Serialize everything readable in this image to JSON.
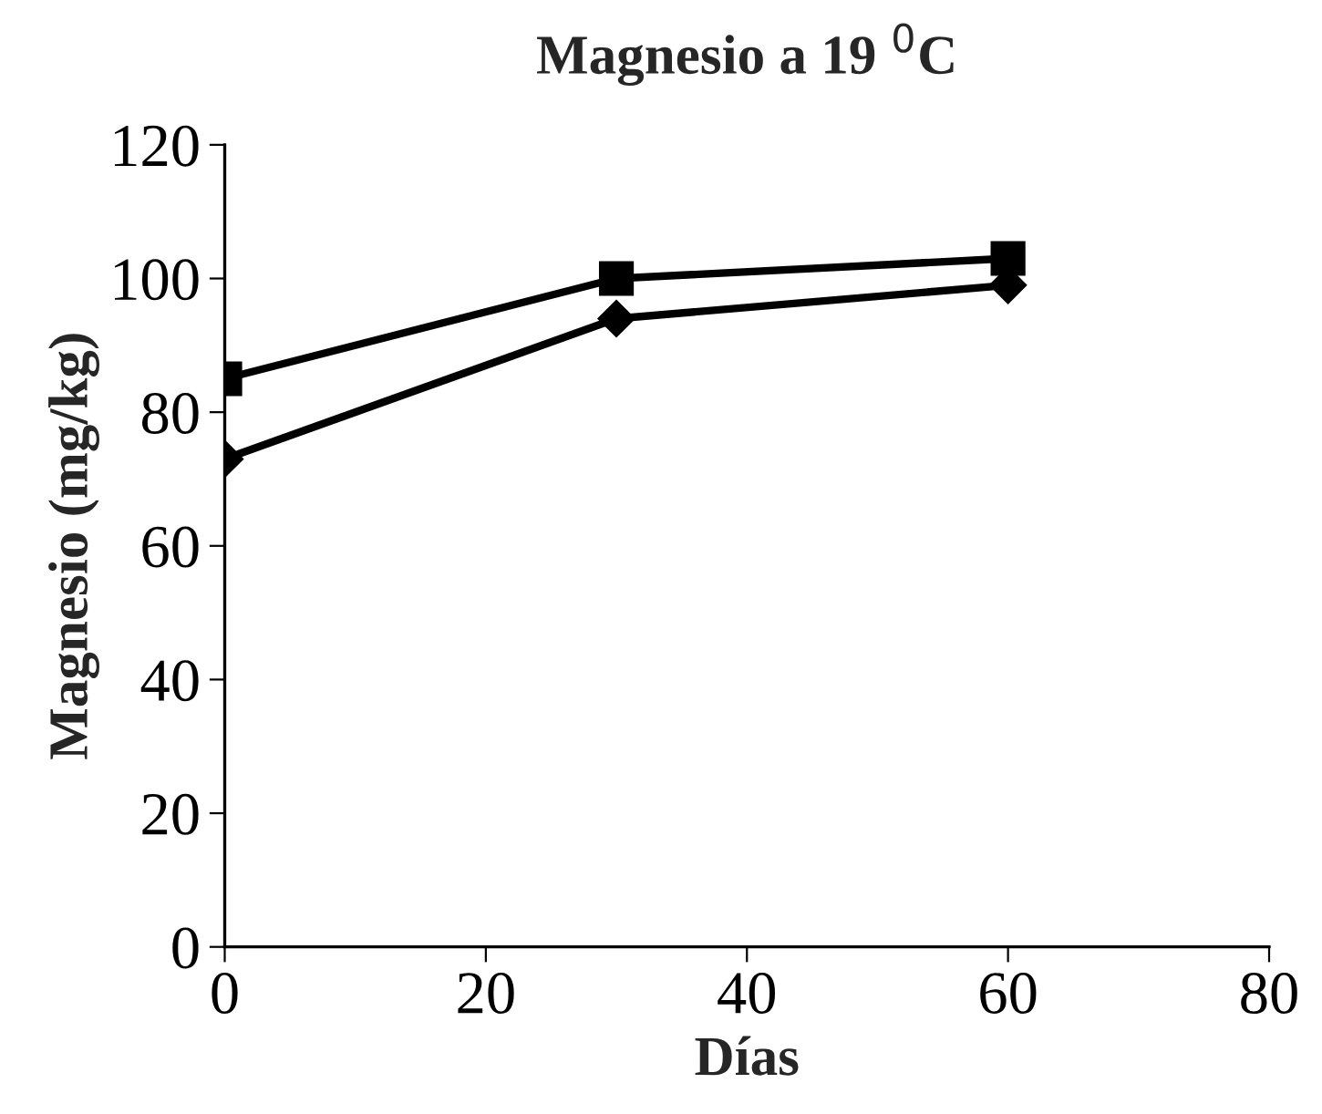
{
  "chart_data": {
    "type": "line",
    "title": "Magnesio a 19 $^{0}$C",
    "xlabel": "Días",
    "ylabel": "Magnesio (mg/kg)",
    "x": [
      0,
      30,
      60
    ],
    "series": [
      {
        "color": "#000000",
        "marker": "square",
        "values": [
          85,
          100,
          103
        ]
      },
      {
        "color": "#000000",
        "marker": "diamond",
        "values": [
          73,
          94,
          99
        ]
      }
    ],
    "xlim": [
      0,
      80
    ],
    "xticks": [
      0,
      20,
      40,
      60,
      80
    ],
    "ylim": [
      0,
      120
    ],
    "yticks": [
      0,
      20,
      40,
      60,
      80,
      100,
      120
    ],
    "grid": false,
    "legend": false,
    "line_style": "solid"
  }
}
